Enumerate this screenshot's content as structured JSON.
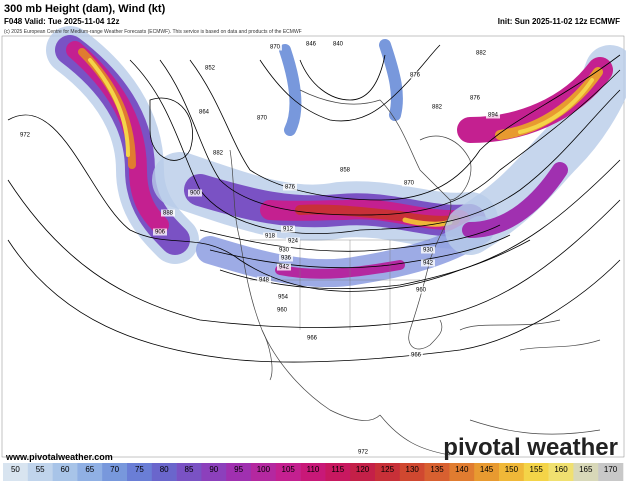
{
  "header": {
    "title": "300 mb Height (dam), Wind (kt)",
    "valid": "F048 Valid: Tue 2025-11-04 12z",
    "init": "Init: Sun 2025-11-02 12z ECMWF",
    "copyright": "(c) 2025 European Centre for Medium-range Weather Forecasts (ECMWF). This service is based on data and products of the ECMWF"
  },
  "footer": {
    "website": "www.pivotalweather.com",
    "logo": "pivotal weather"
  },
  "contour_labels": [
    "846",
    "840",
    "870",
    "852",
    "858",
    "864",
    "870",
    "876",
    "882",
    "888",
    "894",
    "900",
    "906",
    "912",
    "918",
    "924",
    "930",
    "936",
    "942",
    "948",
    "954",
    "960",
    "966",
    "966",
    "972",
    "972",
    "876",
    "882",
    "882",
    "876",
    "870",
    "960",
    "930",
    "942"
  ],
  "colorbar": {
    "ticks": [
      50,
      55,
      60,
      65,
      70,
      75,
      80,
      85,
      90,
      95,
      100,
      105,
      110,
      115,
      120,
      125,
      130,
      135,
      140,
      145,
      150,
      155,
      160,
      165,
      170
    ],
    "colors": [
      "#d8e4f0",
      "#c0d4ec",
      "#a8c4e8",
      "#90b0e4",
      "#7898dc",
      "#6a7ed6",
      "#6a66cc",
      "#7a52c4",
      "#8c40bc",
      "#a030b0",
      "#b428a0",
      "#c42090",
      "#c81878",
      "#c81860",
      "#c42048",
      "#c83038",
      "#d04830",
      "#d86030",
      "#e07c30",
      "#e89a30",
      "#f0b838",
      "#f4d448",
      "#f0e070",
      "#d8d8b8",
      "#c8c8c8"
    ]
  }
}
